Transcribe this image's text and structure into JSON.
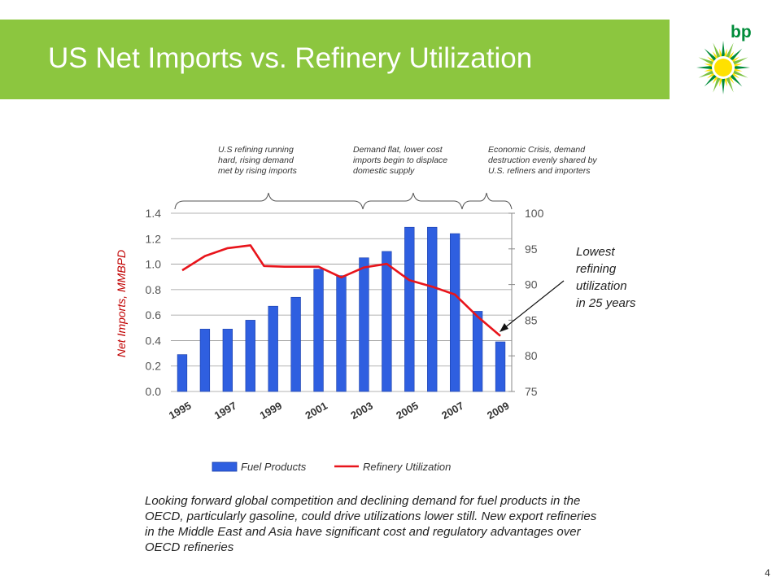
{
  "slide": {
    "title": "US Net Imports vs. Refinery Utilization",
    "logo_text": "bp",
    "caption": "Looking forward global competition and declining demand for fuel products in the OECD, particularly gasoline, could drive utilizations lower still. New export refineries in the Middle East and Asia have significant cost and regulatory advantages over OECD refineries",
    "page_number": "4",
    "colors": {
      "title_bar": "#8cc63f",
      "bars": "#2f5fe0",
      "line": "#e8141b",
      "logo_green": "#008c3a",
      "logo_yellow": "#ffe100"
    }
  },
  "chart_data": {
    "type": "bar",
    "xlabel": "",
    "ylabel": "Net Imports, MMBPD",
    "y2label": "",
    "ylim": [
      0,
      1.4
    ],
    "y2lim": [
      75,
      100
    ],
    "yticks": [
      "0.0",
      "0.2",
      "0.4",
      "0.6",
      "0.8",
      "1.0",
      "1.2",
      "1.4"
    ],
    "y2ticks": [
      "75",
      "80",
      "85",
      "90",
      "95",
      "100"
    ],
    "categories": [
      "1995",
      "1996",
      "1997",
      "1998",
      "1999",
      "2000",
      "2001",
      "2002",
      "2003",
      "2004",
      "2005",
      "2006",
      "2007",
      "2008",
      "2009"
    ],
    "xtick_labels": [
      "1995",
      "1997",
      "1999",
      "2001",
      "2003",
      "2005",
      "2007",
      "2009"
    ],
    "series": [
      {
        "name": "Fuel Products",
        "type": "bar",
        "axis": "left",
        "values": [
          0.29,
          0.49,
          0.49,
          0.56,
          0.67,
          0.74,
          0.96,
          0.91,
          1.05,
          1.1,
          1.29,
          1.29,
          1.24,
          0.63,
          0.39
        ]
      },
      {
        "name": "Refinery Utilization",
        "type": "line",
        "axis": "right",
        "x": [
          1995,
          1996,
          1997,
          1998,
          1998.6,
          1999.5,
          2000,
          2001,
          2002,
          2003,
          2004,
          2005,
          2006,
          2007,
          2008,
          2009
        ],
        "values": [
          92.0,
          94.0,
          95.1,
          95.5,
          92.6,
          92.5,
          92.5,
          92.5,
          91.0,
          92.4,
          92.9,
          90.6,
          89.7,
          88.6,
          85.5,
          82.8
        ]
      }
    ],
    "legend_position": "bottom",
    "annotations": {
      "brackets": [
        {
          "text_lines": [
            "U.S refining running",
            "hard, rising demand",
            "met by rising imports"
          ]
        },
        {
          "text_lines": [
            "Demand flat, lower cost",
            "imports begin to displace",
            "domestic supply"
          ]
        },
        {
          "text_lines": [
            "Economic Crisis, demand",
            "destruction evenly shared by",
            "U.S. refiners and importers"
          ]
        }
      ],
      "callout_lines": [
        "Lowest",
        "refining",
        "utilization",
        "in 25 years"
      ]
    }
  }
}
